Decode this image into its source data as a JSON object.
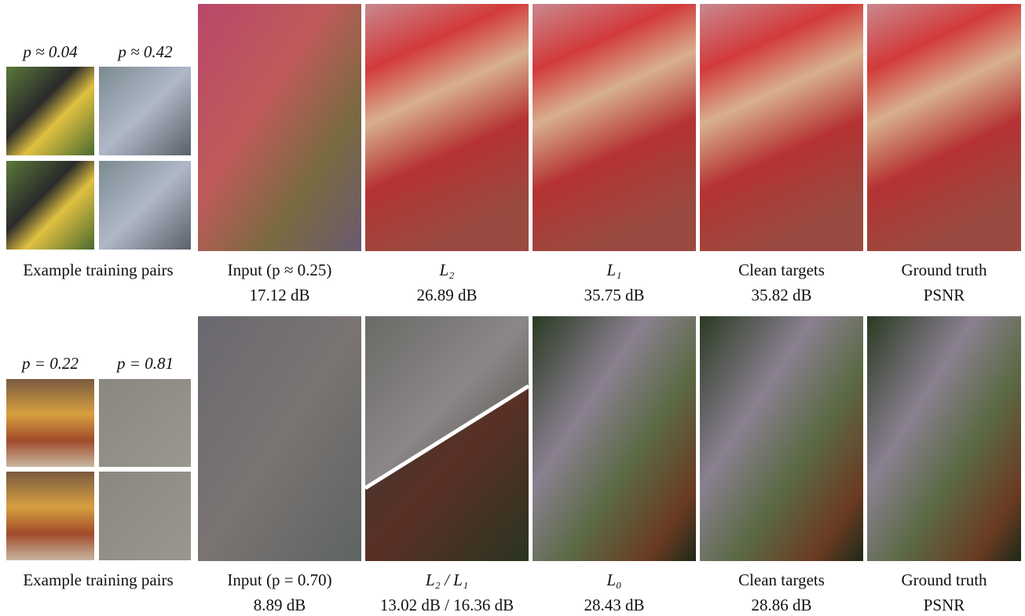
{
  "rows": [
    {
      "pair_labels": [
        "p ≈ 0.04",
        "p ≈ 0.42"
      ],
      "captions": [
        {
          "title": "Example training pairs"
        },
        {
          "title": "Input (p ≈ 0.25)",
          "psnr": "17.12 dB"
        },
        {
          "title": "L₂",
          "psnr": "26.89 dB"
        },
        {
          "title": "L₁",
          "psnr": "35.75 dB"
        },
        {
          "title": "Clean targets",
          "psnr": "35.82 dB"
        },
        {
          "title": "Ground truth",
          "psnr": "PSNR"
        }
      ]
    },
    {
      "pair_labels": [
        "p = 0.22",
        "p = 0.81"
      ],
      "captions": [
        {
          "title": "Example training pairs"
        },
        {
          "title": "Input (p = 0.70)",
          "psnr": "8.89 dB"
        },
        {
          "title": "L₂ / L₁",
          "psnr": "13.02 dB / 16.36 dB"
        },
        {
          "title": "L₀",
          "psnr": "28.43 dB"
        },
        {
          "title": "Clean targets",
          "psnr": "28.86 dB"
        },
        {
          "title": "Ground truth",
          "psnr": "PSNR"
        }
      ]
    }
  ]
}
